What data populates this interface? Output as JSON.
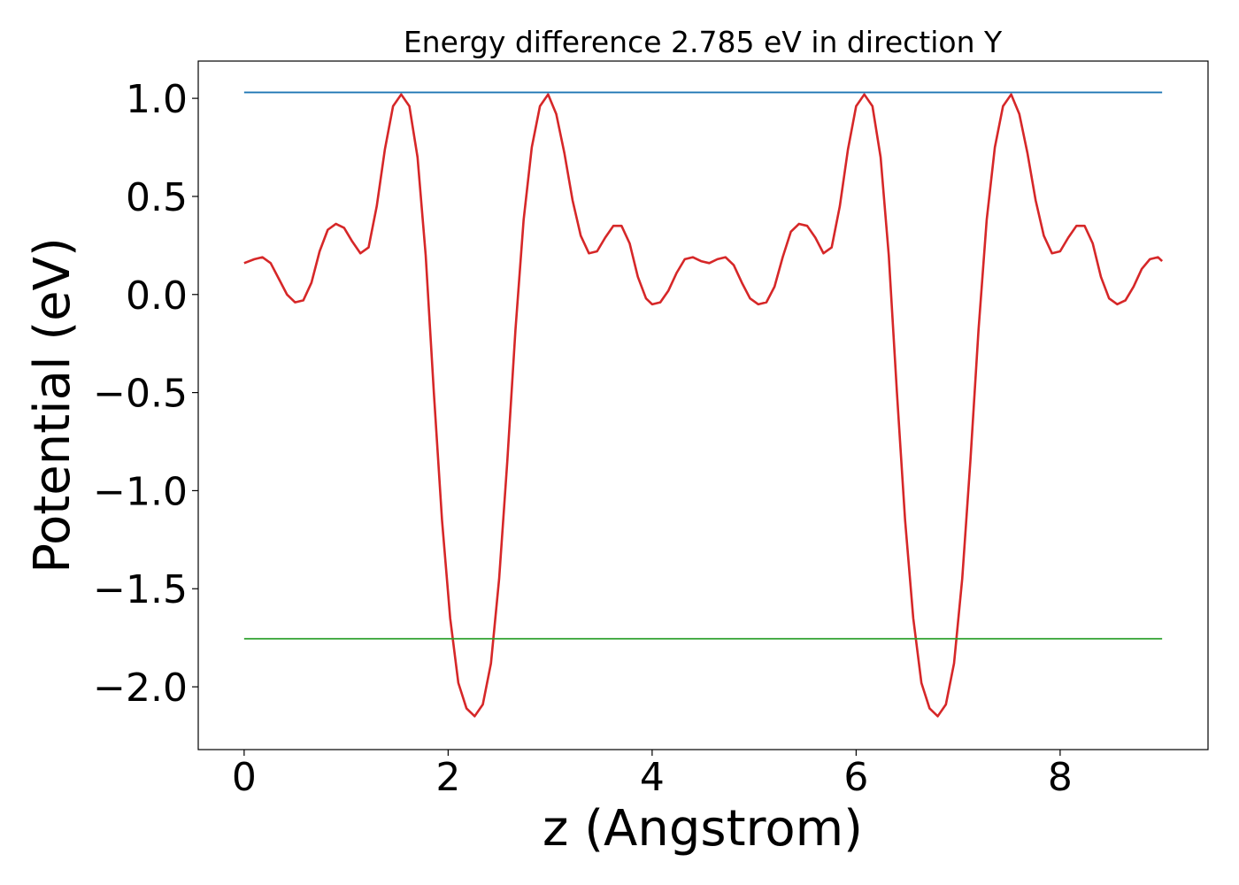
{
  "chart_data": {
    "type": "line",
    "title": "Energy difference 2.785 eV in direction Y",
    "xlabel": "z (Angstrom)",
    "ylabel": "Potential (eV)",
    "xlim": [
      -0.45,
      9.45
    ],
    "ylim": [
      -2.32,
      1.19
    ],
    "xticks": [
      0,
      2,
      4,
      6,
      8
    ],
    "xtick_labels": [
      "0",
      "2",
      "4",
      "6",
      "8"
    ],
    "yticks": [
      1.0,
      0.5,
      0.0,
      -0.5,
      -1.0,
      -1.5,
      -2.0
    ],
    "ytick_labels": [
      "1.0",
      "0.5",
      "0.0",
      "−0.5",
      "−1.0",
      "−1.5",
      "−2.0"
    ],
    "grid": false,
    "series": [
      {
        "color": "#d62728",
        "points": [
          [
            0.0,
            0.16
          ],
          [
            0.1,
            0.18
          ],
          [
            0.18,
            0.19
          ],
          [
            0.26,
            0.16
          ],
          [
            0.34,
            0.08
          ],
          [
            0.42,
            0.0
          ],
          [
            0.5,
            -0.04
          ],
          [
            0.58,
            -0.03
          ],
          [
            0.66,
            0.06
          ],
          [
            0.74,
            0.22
          ],
          [
            0.82,
            0.33
          ],
          [
            0.9,
            0.36
          ],
          [
            0.98,
            0.34
          ],
          [
            1.06,
            0.27
          ],
          [
            1.14,
            0.21
          ],
          [
            1.22,
            0.24
          ],
          [
            1.3,
            0.45
          ],
          [
            1.38,
            0.74
          ],
          [
            1.46,
            0.96
          ],
          [
            1.54,
            1.02
          ],
          [
            1.62,
            0.96
          ],
          [
            1.7,
            0.7
          ],
          [
            1.78,
            0.2
          ],
          [
            1.86,
            -0.5
          ],
          [
            1.94,
            -1.15
          ],
          [
            2.02,
            -1.65
          ],
          [
            2.1,
            -1.98
          ],
          [
            2.18,
            -2.11
          ],
          [
            2.26,
            -2.15
          ],
          [
            2.34,
            -2.09
          ],
          [
            2.42,
            -1.88
          ],
          [
            2.5,
            -1.45
          ],
          [
            2.58,
            -0.85
          ],
          [
            2.66,
            -0.18
          ],
          [
            2.74,
            0.38
          ],
          [
            2.82,
            0.75
          ],
          [
            2.9,
            0.96
          ],
          [
            2.98,
            1.02
          ],
          [
            3.06,
            0.92
          ],
          [
            3.14,
            0.72
          ],
          [
            3.22,
            0.48
          ],
          [
            3.3,
            0.3
          ],
          [
            3.38,
            0.21
          ],
          [
            3.46,
            0.22
          ],
          [
            3.54,
            0.29
          ],
          [
            3.62,
            0.35
          ],
          [
            3.7,
            0.35
          ],
          [
            3.78,
            0.26
          ],
          [
            3.86,
            0.09
          ],
          [
            3.94,
            -0.02
          ],
          [
            4.0,
            -0.05
          ],
          [
            4.08,
            -0.04
          ],
          [
            4.16,
            0.02
          ],
          [
            4.24,
            0.11
          ],
          [
            4.32,
            0.18
          ],
          [
            4.4,
            0.19
          ],
          [
            4.48,
            0.17
          ],
          [
            4.56,
            0.16
          ],
          [
            4.64,
            0.18
          ],
          [
            4.72,
            0.19
          ],
          [
            4.8,
            0.15
          ],
          [
            4.88,
            0.06
          ],
          [
            4.96,
            -0.02
          ],
          [
            5.04,
            -0.05
          ],
          [
            5.12,
            -0.04
          ],
          [
            5.2,
            0.04
          ],
          [
            5.28,
            0.19
          ],
          [
            5.36,
            0.32
          ],
          [
            5.44,
            0.36
          ],
          [
            5.52,
            0.35
          ],
          [
            5.6,
            0.29
          ],
          [
            5.68,
            0.21
          ],
          [
            5.76,
            0.24
          ],
          [
            5.84,
            0.45
          ],
          [
            5.92,
            0.74
          ],
          [
            6.0,
            0.96
          ],
          [
            6.08,
            1.02
          ],
          [
            6.16,
            0.96
          ],
          [
            6.24,
            0.7
          ],
          [
            6.32,
            0.2
          ],
          [
            6.4,
            -0.5
          ],
          [
            6.48,
            -1.15
          ],
          [
            6.56,
            -1.65
          ],
          [
            6.64,
            -1.98
          ],
          [
            6.72,
            -2.11
          ],
          [
            6.8,
            -2.15
          ],
          [
            6.88,
            -2.09
          ],
          [
            6.96,
            -1.88
          ],
          [
            7.04,
            -1.45
          ],
          [
            7.12,
            -0.85
          ],
          [
            7.2,
            -0.18
          ],
          [
            7.28,
            0.38
          ],
          [
            7.36,
            0.75
          ],
          [
            7.44,
            0.96
          ],
          [
            7.52,
            1.02
          ],
          [
            7.6,
            0.92
          ],
          [
            7.68,
            0.72
          ],
          [
            7.76,
            0.48
          ],
          [
            7.84,
            0.3
          ],
          [
            7.92,
            0.21
          ],
          [
            8.0,
            0.22
          ],
          [
            8.08,
            0.29
          ],
          [
            8.16,
            0.35
          ],
          [
            8.24,
            0.35
          ],
          [
            8.32,
            0.26
          ],
          [
            8.4,
            0.09
          ],
          [
            8.48,
            -0.02
          ],
          [
            8.56,
            -0.05
          ],
          [
            8.64,
            -0.03
          ],
          [
            8.72,
            0.04
          ],
          [
            8.8,
            0.13
          ],
          [
            8.88,
            0.18
          ],
          [
            8.96,
            0.19
          ],
          [
            9.0,
            0.17
          ]
        ]
      },
      {
        "color": "#1f77b4",
        "points": [
          [
            0.0,
            1.03
          ],
          [
            9.0,
            1.03
          ]
        ]
      },
      {
        "color": "#2ca02c",
        "points": [
          [
            0.0,
            -1.755
          ],
          [
            9.0,
            -1.755
          ]
        ]
      }
    ]
  }
}
